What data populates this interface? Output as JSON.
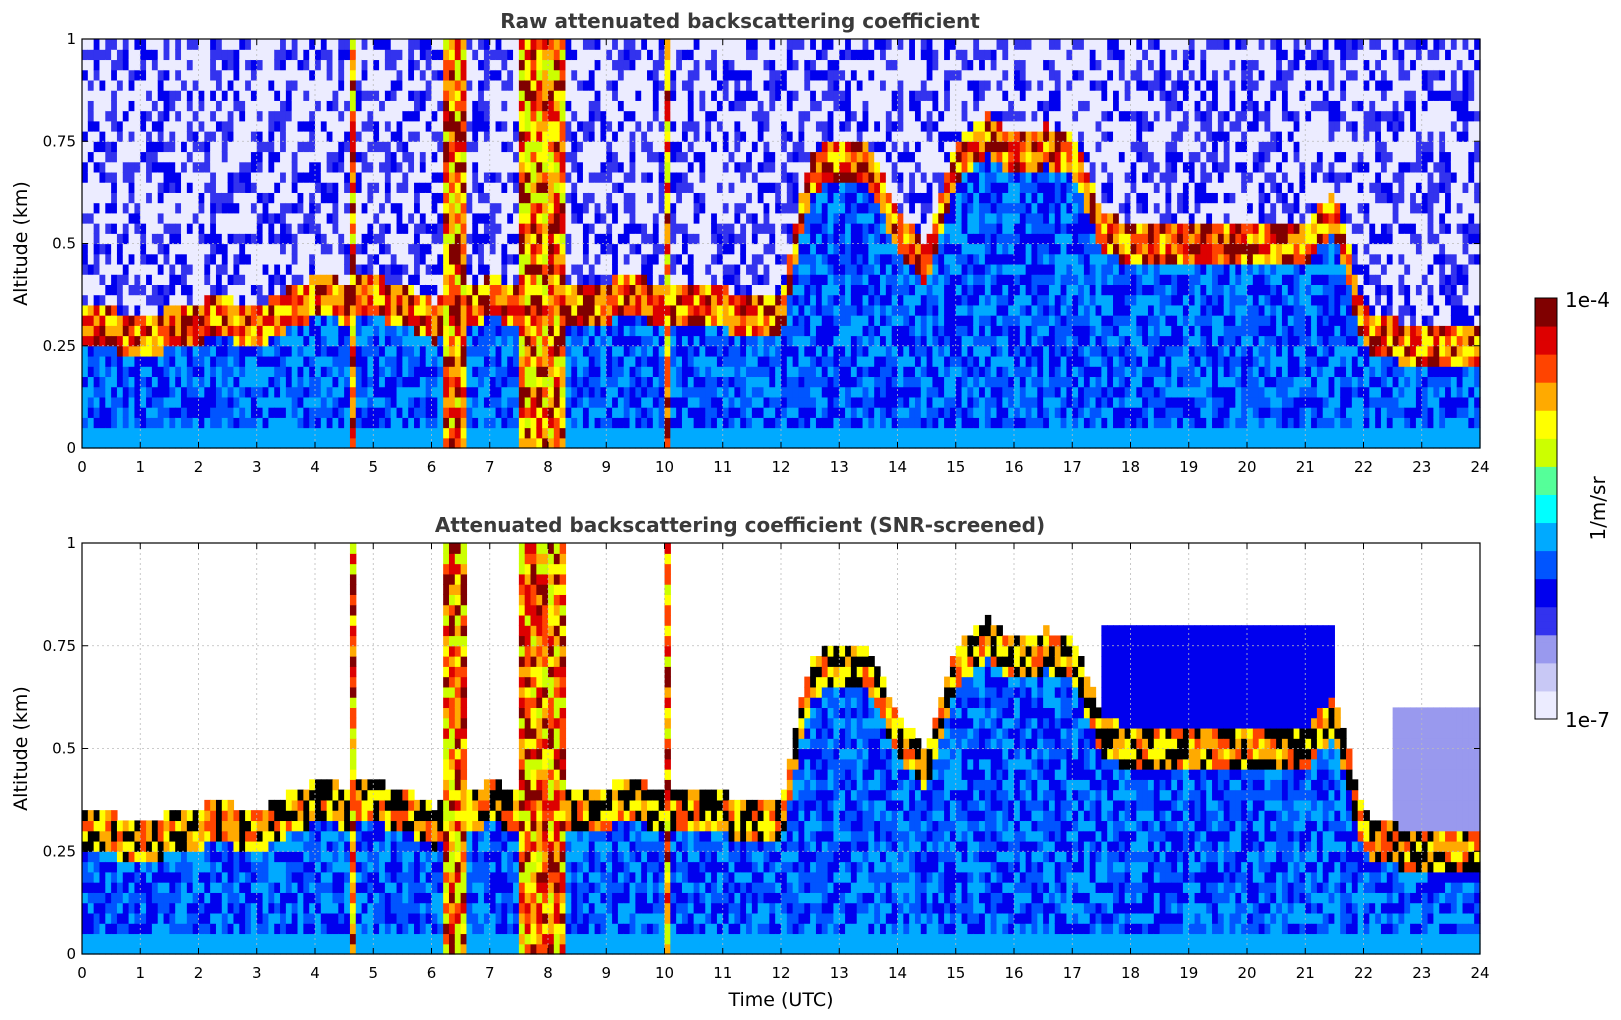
{
  "chart_data": [
    {
      "type": "heatmap",
      "title": "Raw attenuated backscattering coefficient",
      "xlabel": "",
      "ylabel": "Altitude (km)",
      "xlim": [
        0,
        24
      ],
      "ylim": [
        0,
        1
      ],
      "x_ticks": [
        "0",
        "1",
        "2",
        "3",
        "4",
        "5",
        "6",
        "7",
        "8",
        "9",
        "10",
        "11",
        "12",
        "13",
        "14",
        "15",
        "16",
        "17",
        "18",
        "19",
        "20",
        "21",
        "22",
        "23",
        "24"
      ],
      "y_ticks": [
        "0",
        "0.25",
        "0.5",
        "0.75",
        "1"
      ],
      "grid": true,
      "boundary_layer_top_km": [
        [
          0,
          0.3
        ],
        [
          0.5,
          0.3
        ],
        [
          1,
          0.28
        ],
        [
          1.5,
          0.3
        ],
        [
          2,
          0.32
        ],
        [
          2.5,
          0.33
        ],
        [
          3,
          0.3
        ],
        [
          3.5,
          0.35
        ],
        [
          4,
          0.38
        ],
        [
          4.5,
          0.37
        ],
        [
          5,
          0.38
        ],
        [
          5.5,
          0.36
        ],
        [
          6,
          0.32
        ],
        [
          6.5,
          0.34
        ],
        [
          7,
          0.38
        ],
        [
          7.5,
          0.36
        ],
        [
          8,
          0.37
        ],
        [
          8.5,
          0.35
        ],
        [
          9,
          0.37
        ],
        [
          9.5,
          0.38
        ],
        [
          10,
          0.36
        ],
        [
          10.5,
          0.36
        ],
        [
          11,
          0.35
        ],
        [
          11.5,
          0.34
        ],
        [
          12,
          0.33
        ],
        [
          12.5,
          0.68
        ],
        [
          13,
          0.72
        ],
        [
          13.5,
          0.7
        ],
        [
          14,
          0.55
        ],
        [
          14.5,
          0.45
        ],
        [
          15,
          0.7
        ],
        [
          15.5,
          0.78
        ],
        [
          16,
          0.72
        ],
        [
          16.5,
          0.75
        ],
        [
          17,
          0.74
        ],
        [
          17.5,
          0.55
        ],
        [
          18,
          0.5
        ],
        [
          18.5,
          0.5
        ],
        [
          19,
          0.5
        ],
        [
          19.5,
          0.5
        ],
        [
          20,
          0.5
        ],
        [
          20.5,
          0.5
        ],
        [
          21,
          0.5
        ],
        [
          21.5,
          0.6
        ],
        [
          22,
          0.3
        ],
        [
          22.5,
          0.28
        ],
        [
          23,
          0.25
        ],
        [
          23.5,
          0.25
        ],
        [
          24,
          0.25
        ]
      ],
      "colorbar": {
        "min_label": "1e-7",
        "max_label": "1e-4",
        "label": "1/m/sr",
        "scale": "log"
      }
    },
    {
      "type": "heatmap",
      "title": "Attenuated backscattering coefficient (SNR-screened)",
      "xlabel": "Time (UTC)",
      "ylabel": "Altitude (km)",
      "xlim": [
        0,
        24
      ],
      "ylim": [
        0,
        1
      ],
      "x_ticks": [
        "0",
        "1",
        "2",
        "3",
        "4",
        "5",
        "6",
        "7",
        "8",
        "9",
        "10",
        "11",
        "12",
        "13",
        "14",
        "15",
        "16",
        "17",
        "18",
        "19",
        "20",
        "21",
        "22",
        "23",
        "24"
      ],
      "y_ticks": [
        "0",
        "0.25",
        "0.5",
        "0.75",
        "1"
      ],
      "grid": true,
      "colorbar": {
        "min_label": "1e-7",
        "max_label": "1e-4",
        "label": "1/m/sr",
        "scale": "log"
      }
    }
  ],
  "colors": {
    "colormap": [
      "#ececff",
      "#c8c8f5",
      "#9999ee",
      "#3333ee",
      "#0000ee",
      "#0055ff",
      "#00aaff",
      "#00ffff",
      "#55ff99",
      "#ccff00",
      "#ffff00",
      "#ffaa00",
      "#ff4400",
      "#dd0000",
      "#800000"
    ],
    "title_color": "#3a3a3a",
    "saturated": "#000000"
  }
}
